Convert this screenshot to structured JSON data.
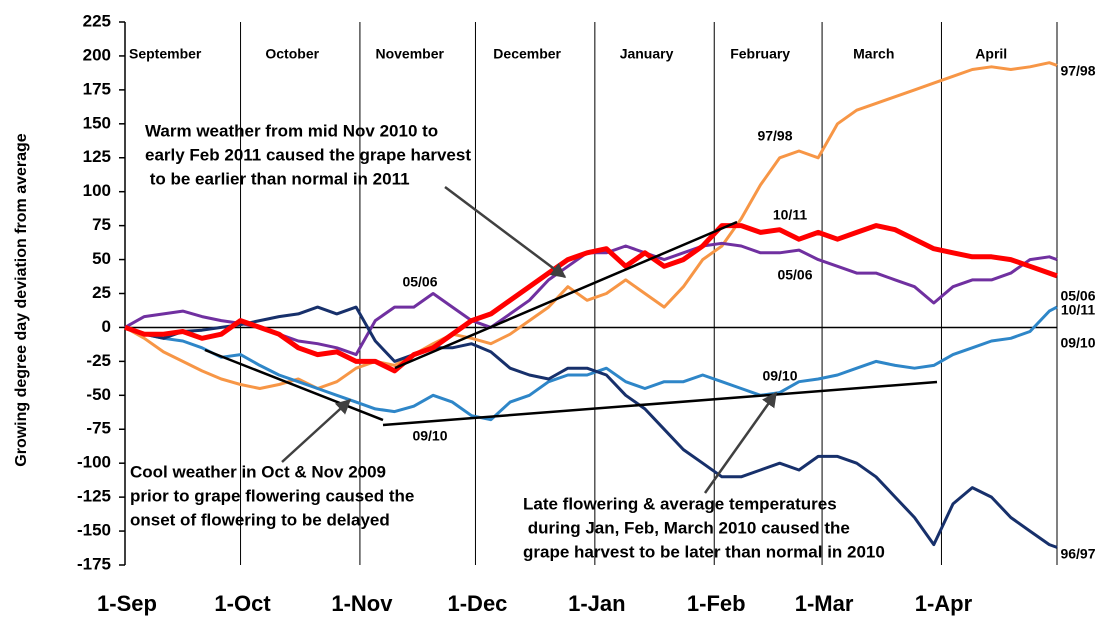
{
  "chart_data": {
    "type": "line",
    "y_axis_label": "Growing degree day deviation from average",
    "xlim": [
      0,
      242
    ],
    "xticks": [
      {
        "value": 0,
        "label": "1-Sep"
      },
      {
        "value": 30,
        "label": "1-Oct"
      },
      {
        "value": 61,
        "label": "1-Nov"
      },
      {
        "value": 91,
        "label": "1-Dec"
      },
      {
        "value": 122,
        "label": "1-Jan"
      },
      {
        "value": 153,
        "label": "1-Feb"
      },
      {
        "value": 181,
        "label": "1-Mar"
      },
      {
        "value": 212,
        "label": "1-Apr"
      }
    ],
    "month_labels": [
      "September",
      "October",
      "November",
      "December",
      "January",
      "February",
      "March",
      "April"
    ],
    "ylim": [
      -175,
      225
    ],
    "yticks": [
      -175,
      -150,
      -125,
      -100,
      -75,
      -50,
      -25,
      0,
      25,
      50,
      75,
      100,
      125,
      150,
      175,
      200,
      225
    ],
    "x": [
      0,
      5,
      10,
      15,
      20,
      25,
      30,
      35,
      40,
      45,
      50,
      55,
      60,
      65,
      70,
      75,
      80,
      85,
      90,
      95,
      100,
      105,
      110,
      115,
      120,
      125,
      130,
      135,
      140,
      145,
      150,
      155,
      160,
      165,
      170,
      175,
      180,
      185,
      190,
      195,
      200,
      205,
      210,
      215,
      220,
      225,
      230,
      235,
      240,
      242
    ],
    "series": [
      {
        "name": "96/97",
        "color": "#17306b",
        "values": [
          0,
          -5,
          -8,
          -3,
          -2,
          0,
          2,
          5,
          8,
          10,
          15,
          10,
          15,
          -10,
          -25,
          -20,
          -15,
          -15,
          -12,
          -18,
          -30,
          -35,
          -38,
          -30,
          -30,
          -35,
          -50,
          -60,
          -75,
          -90,
          -100,
          -110,
          -110,
          -105,
          -100,
          -105,
          -95,
          -95,
          -100,
          -110,
          -125,
          -140,
          -160,
          -130,
          -118,
          -125,
          -140,
          -150,
          -160,
          -162
        ]
      },
      {
        "name": "97/98",
        "color": "#f79646",
        "values": [
          0,
          -8,
          -18,
          -25,
          -32,
          -38,
          -42,
          -45,
          -42,
          -38,
          -45,
          -40,
          -30,
          -25,
          -28,
          -20,
          -12,
          -5,
          -8,
          -12,
          -5,
          5,
          15,
          30,
          20,
          25,
          35,
          25,
          15,
          30,
          50,
          60,
          80,
          105,
          125,
          130,
          125,
          150,
          160,
          165,
          170,
          175,
          180,
          185,
          190,
          192,
          190,
          192,
          195,
          193
        ]
      },
      {
        "name": "05/06",
        "color": "#7030a0",
        "values": [
          0,
          8,
          10,
          12,
          8,
          5,
          3,
          0,
          -5,
          -10,
          -12,
          -15,
          -20,
          5,
          15,
          15,
          25,
          15,
          5,
          0,
          10,
          20,
          35,
          45,
          55,
          55,
          60,
          55,
          50,
          55,
          60,
          62,
          60,
          55,
          55,
          57,
          50,
          45,
          40,
          40,
          35,
          30,
          18,
          30,
          35,
          35,
          40,
          50,
          52,
          50
        ]
      },
      {
        "name": "09/10",
        "color": "#2e86c8",
        "values": [
          0,
          -5,
          -8,
          -10,
          -15,
          -22,
          -20,
          -28,
          -35,
          -40,
          -45,
          -50,
          -55,
          -60,
          -62,
          -58,
          -50,
          -55,
          -65,
          -68,
          -55,
          -50,
          -40,
          -35,
          -35,
          -30,
          -40,
          -45,
          -40,
          -40,
          -35,
          -40,
          -45,
          -50,
          -48,
          -40,
          -38,
          -35,
          -30,
          -25,
          -28,
          -30,
          -28,
          -20,
          -15,
          -10,
          -8,
          -3,
          12,
          15
        ]
      },
      {
        "name": "10/11",
        "color": "#ff0000",
        "values": [
          0,
          -5,
          -5,
          -3,
          -8,
          -5,
          5,
          0,
          -5,
          -15,
          -20,
          -18,
          -25,
          -25,
          -32,
          -20,
          -15,
          -5,
          5,
          10,
          20,
          30,
          40,
          50,
          55,
          58,
          45,
          55,
          45,
          50,
          60,
          75,
          75,
          70,
          72,
          65,
          70,
          65,
          70,
          75,
          72,
          65,
          58,
          55,
          52,
          52,
          50,
          45,
          40,
          38
        ]
      }
    ],
    "annotations": [
      [
        "Warm weather from mid Nov 2010 to",
        "early Feb 2011 caused the grape harvest",
        " to be earlier than normal in 2011"
      ],
      [
        "Cool weather in Oct & Nov 2009",
        "prior to grape flowering caused the",
        "onset of flowering to be delayed"
      ],
      [
        "Late flowering & average temperatures",
        " during Jan, Feb, March 2010 caused the",
        "grape harvest to be later than normal in 2010"
      ]
    ]
  }
}
